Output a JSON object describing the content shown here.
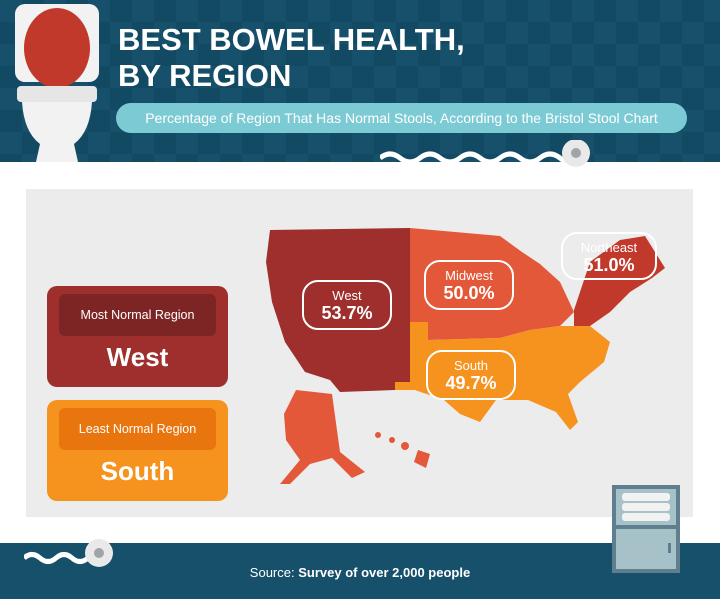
{
  "header": {
    "title_line1": "BEST BOWEL HEALTH,",
    "title_line2": "BY REGION",
    "subtitle": "Percentage of Region That Has Normal Stools, According to the Bristol Stool Chart"
  },
  "cards": {
    "most": {
      "label": "Most Normal Region",
      "value": "West"
    },
    "least": {
      "label": "Least Normal Region",
      "value": "South"
    }
  },
  "regions": [
    {
      "name": "West",
      "percent": "53.7%",
      "color": "#9e2f2d"
    },
    {
      "name": "Midwest",
      "percent": "50.0%",
      "color": "#e4583a"
    },
    {
      "name": "Northeast",
      "percent": "51.0%",
      "color": "#c0392b"
    },
    {
      "name": "South",
      "percent": "49.7%",
      "color": "#f6921e"
    }
  ],
  "colors": {
    "header_bg": "#16506a",
    "pill": "#7ccbd4",
    "panel": "#ececec",
    "west": "#9e2f2d",
    "midwest": "#e4583a",
    "northeast": "#c0392b",
    "south": "#f6921e",
    "alaska_hawaii": "#e4583a"
  },
  "icons": [
    "toilet-icon",
    "toilet-paper-roll-icon",
    "cabinet-icon"
  ],
  "footer": {
    "source_label": "Source:",
    "source_text": "Survey of over 2,000 people"
  }
}
